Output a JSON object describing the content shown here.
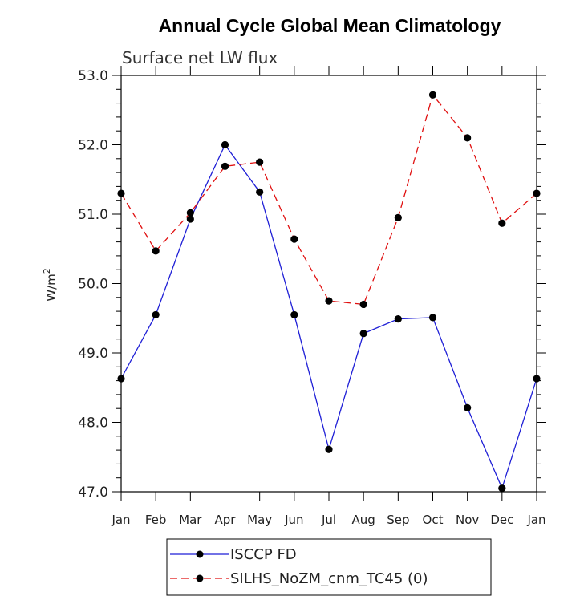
{
  "chart_data": {
    "type": "line",
    "title": "Annual Cycle Global Mean Climatology",
    "subtitle": "Surface net LW flux",
    "ylabel": "W/m",
    "ylabel_sup": "2",
    "xlabel": "",
    "ylim": [
      47.0,
      53.0
    ],
    "yticks": [
      "47.0",
      "48.0",
      "49.0",
      "50.0",
      "51.0",
      "52.0",
      "53.0"
    ],
    "categories": [
      "Jan",
      "Feb",
      "Mar",
      "Apr",
      "May",
      "Jun",
      "Jul",
      "Aug",
      "Sep",
      "Oct",
      "Nov",
      "Dec",
      "Jan"
    ],
    "series": [
      {
        "name": "ISCCP FD",
        "color": "#1f1fd6",
        "dash": "solid",
        "values": [
          48.63,
          49.55,
          50.93,
          52.0,
          51.32,
          49.55,
          47.61,
          49.28,
          49.49,
          49.51,
          48.21,
          47.05,
          48.63
        ]
      },
      {
        "name": "SILHS_NoZM_cnm_TC45 (0)",
        "color": "#e01010",
        "dash": "dashed",
        "values": [
          51.3,
          50.47,
          51.02,
          51.69,
          51.75,
          50.64,
          49.75,
          49.7,
          50.95,
          52.72,
          52.1,
          50.87,
          51.3
        ]
      }
    ],
    "legend_position": "bottom-left"
  }
}
